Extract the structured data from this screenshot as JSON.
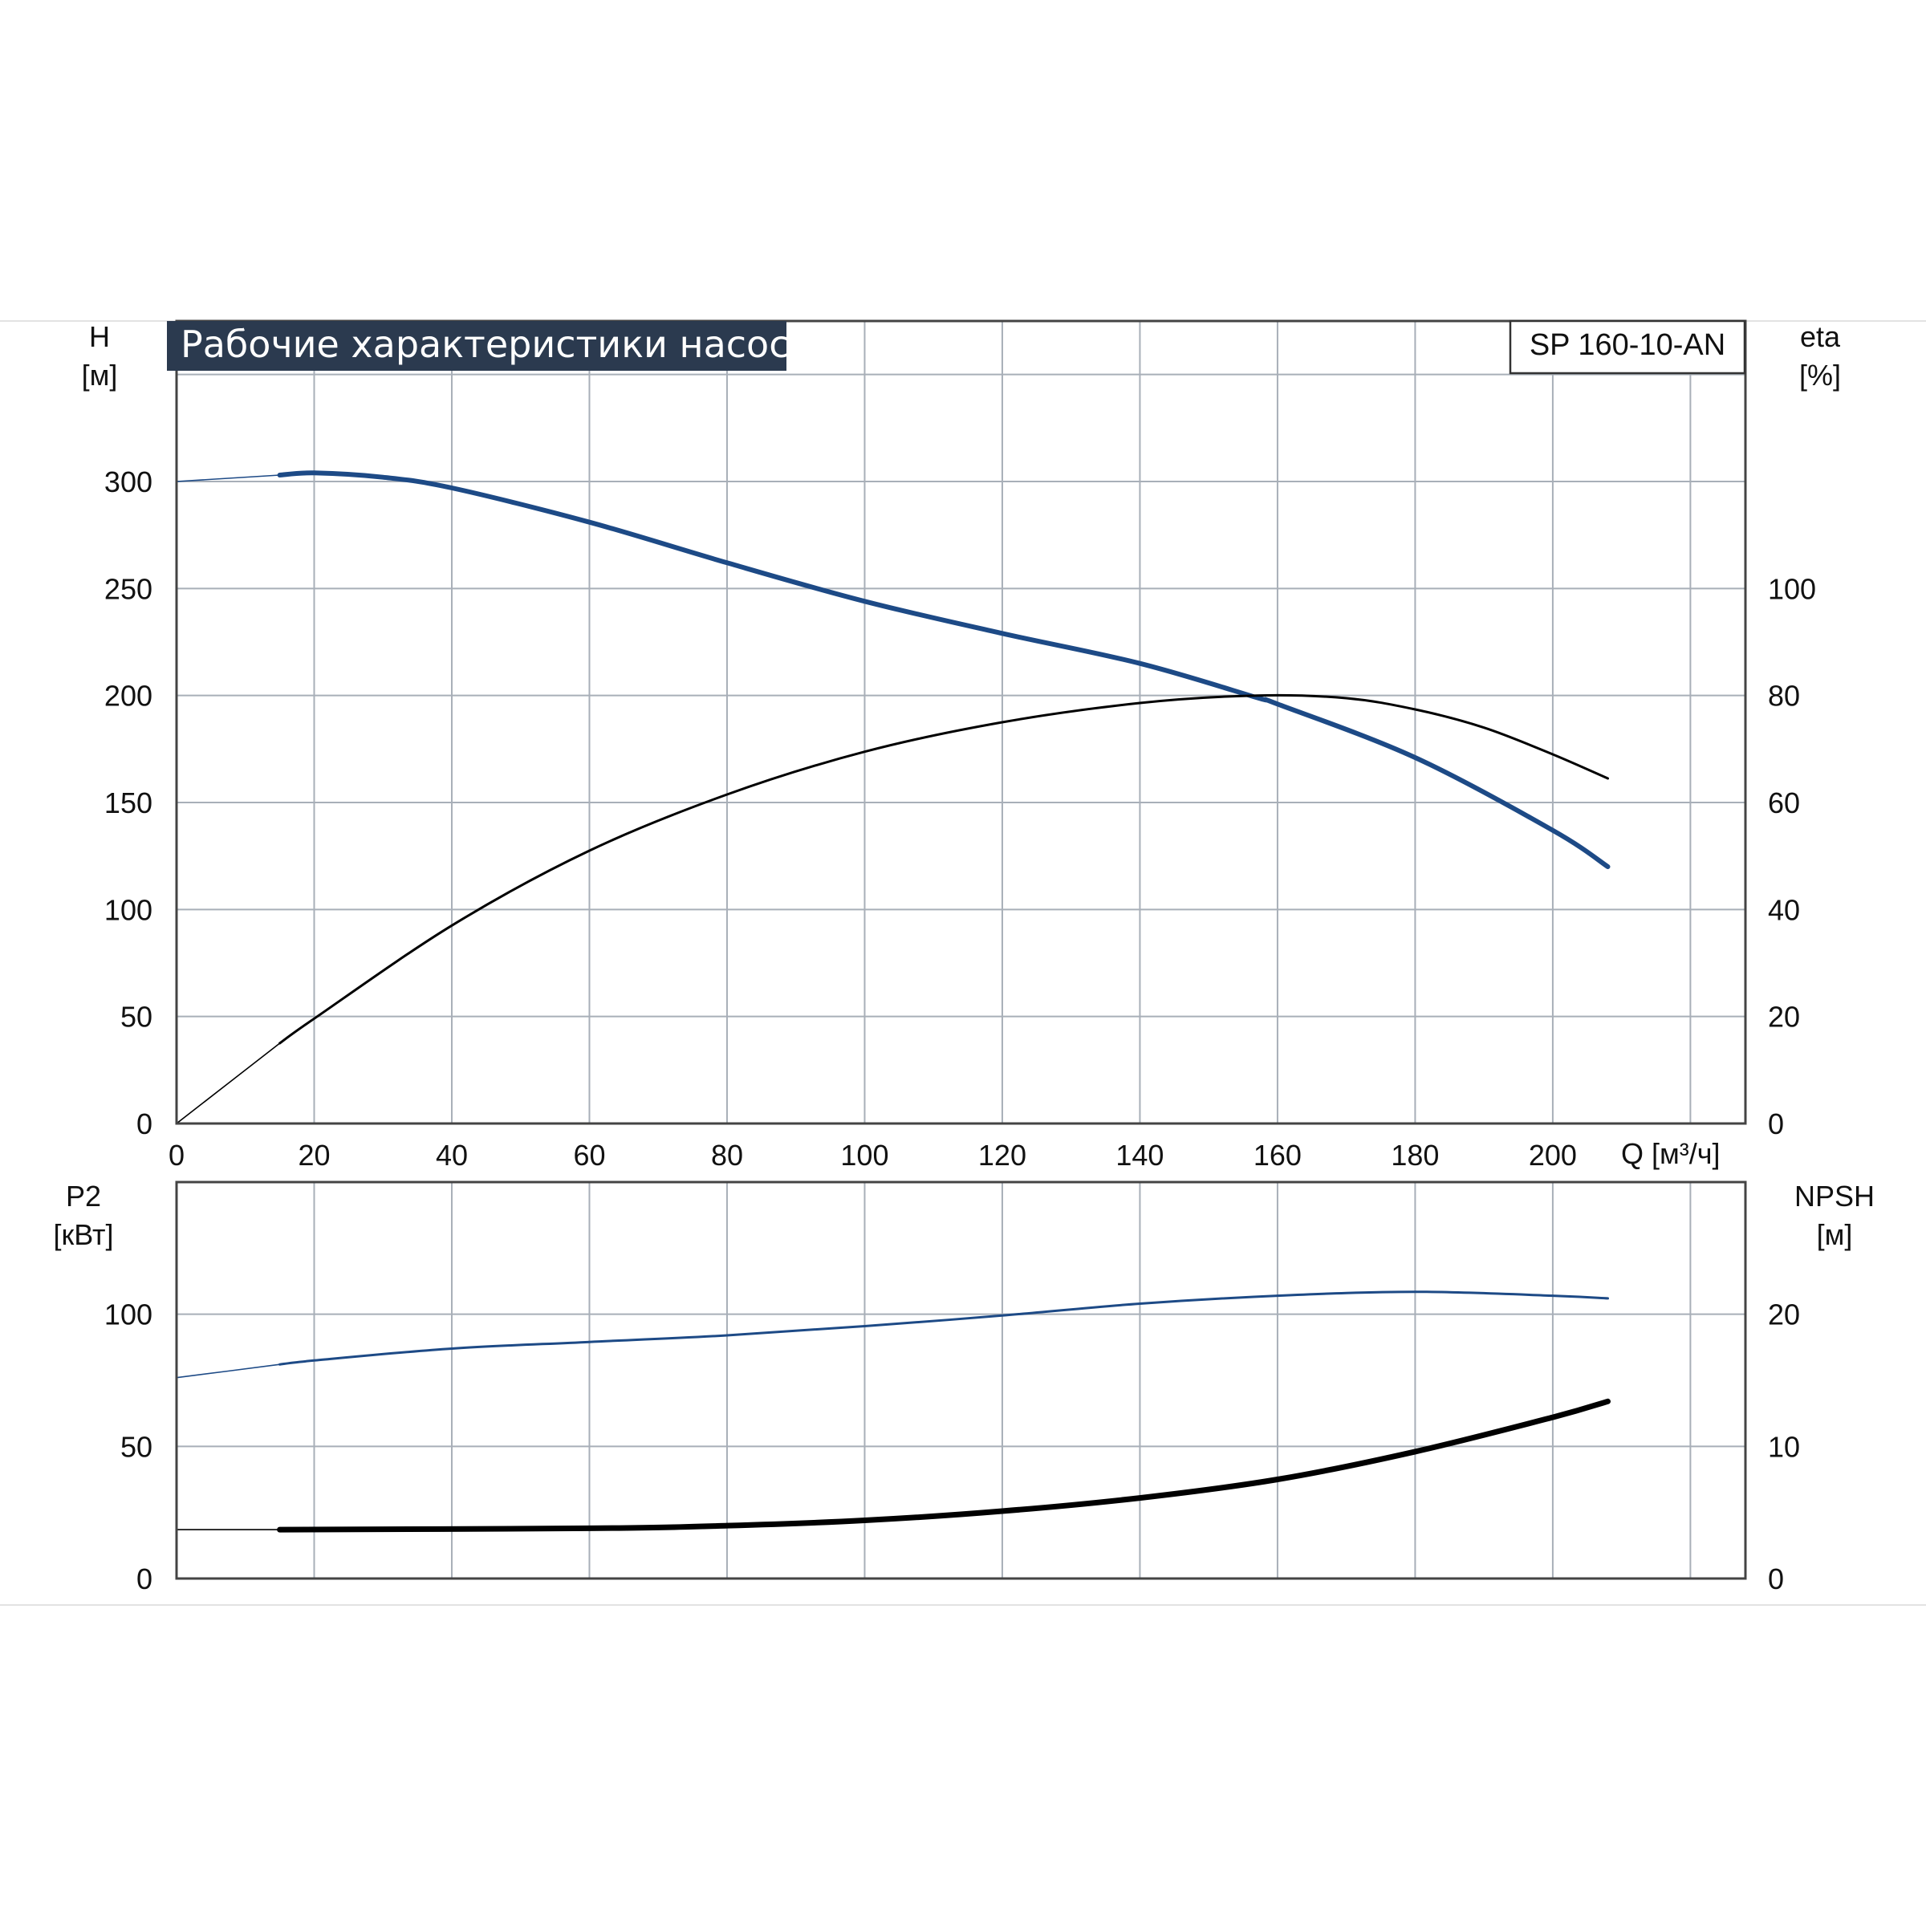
{
  "title": "Рабочие характеристики насоса",
  "model": "SP 160-10-AN",
  "colors": {
    "title_bg": "#2b3a4f",
    "blue_curve": "#1d4a86",
    "black_curve": "#000000",
    "grid": "#a8afb8",
    "frame": "#444444"
  },
  "top_chart": {
    "left_axis": {
      "label": "H",
      "unit": "[м]"
    },
    "right_axis": {
      "label": "eta",
      "unit": "[%]"
    },
    "left_ticks": [
      "0",
      "50",
      "100",
      "150",
      "200",
      "250",
      "300"
    ],
    "right_ticks": [
      "0",
      "20",
      "40",
      "60",
      "80",
      "100"
    ],
    "x_ticks": [
      "0",
      "20",
      "40",
      "60",
      "80",
      "100",
      "120",
      "140",
      "160",
      "180",
      "200"
    ],
    "x_label": "Q [м³/ч]"
  },
  "bottom_chart": {
    "left_axis": {
      "label": "P2",
      "unit": "[кВт]"
    },
    "right_axis": {
      "label": "NPSH",
      "unit": "[м]"
    },
    "left_ticks": [
      "0",
      "50",
      "100"
    ],
    "right_ticks": [
      "0",
      "10",
      "20"
    ]
  },
  "chart_data": [
    {
      "type": "line",
      "title": "Рабочие характеристики насоса",
      "xlabel": "Q [м³/ч]",
      "ylabel": "H [м]",
      "y2label": "eta [%]",
      "xlim": [
        0,
        228
      ],
      "ylim": [
        0,
        375
      ],
      "y2lim": [
        0,
        150
      ],
      "grid": true,
      "series": [
        {
          "axis": "left",
          "color": "#1d4a86",
          "width": 6,
          "start_x": 15,
          "x": [
            0,
            15,
            20,
            30,
            40,
            60,
            80,
            100,
            120,
            140,
            157,
            160,
            180,
            200,
            208
          ],
          "values": [
            300,
            303,
            304,
            302,
            297,
            281,
            262,
            244,
            229,
            215,
            199,
            196,
            171,
            137,
            120
          ]
        },
        {
          "axis": "right",
          "color": "#000000",
          "width": 3,
          "start_x": 15,
          "x": [
            0,
            15,
            20,
            40,
            60,
            80,
            100,
            120,
            140,
            157,
            170,
            180,
            190,
            200,
            208
          ],
          "values": [
            0,
            15,
            19.6,
            37,
            51,
            61.5,
            69.5,
            75,
            78.6,
            80,
            79.5,
            77.4,
            74,
            69,
            64.5
          ]
        }
      ]
    },
    {
      "type": "line",
      "ylabel": "P2 [кВт]",
      "y2label": "NPSH [м]",
      "xlim": [
        0,
        228
      ],
      "ylim": [
        0,
        150
      ],
      "y2lim": [
        0,
        30
      ],
      "grid": true,
      "series": [
        {
          "axis": "left",
          "color": "#1d4a86",
          "width": 3,
          "start_x": 15,
          "x": [
            0,
            15,
            20,
            40,
            60,
            80,
            100,
            120,
            140,
            160,
            180,
            200,
            208
          ],
          "values": [
            76,
            81,
            82.5,
            87,
            89.5,
            92,
            95.5,
            99.5,
            104,
            107,
            108.5,
            107,
            106
          ]
        },
        {
          "axis": "right",
          "color": "#000000",
          "width": 7,
          "start_x": 15,
          "x": [
            0,
            15,
            60,
            80,
            100,
            120,
            140,
            160,
            180,
            200,
            208
          ],
          "values": [
            3.7,
            3.7,
            3.8,
            4.0,
            4.4,
            5.1,
            6.1,
            7.5,
            9.6,
            12.2,
            13.4
          ]
        }
      ]
    }
  ]
}
